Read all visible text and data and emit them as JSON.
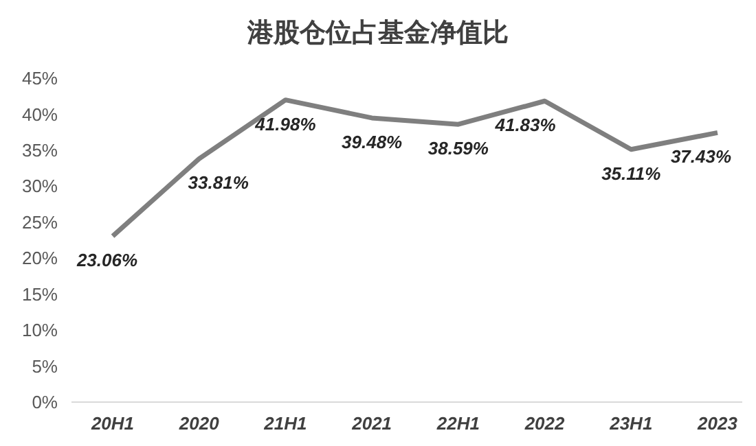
{
  "chart_data": {
    "type": "line",
    "title": "港股仓位占基金净值比",
    "categories": [
      "20H1",
      "2020",
      "21H1",
      "2021",
      "22H1",
      "2022",
      "23H1",
      "2023"
    ],
    "series": [
      {
        "color": "#7f7f7f",
        "values": [
          23.06,
          33.81,
          41.98,
          39.48,
          38.59,
          41.83,
          35.11,
          37.43
        ]
      }
    ],
    "value_labels": [
      "23.06%",
      "33.81%",
      "41.98%",
      "39.48%",
      "38.59%",
      "41.83%",
      "35.11%",
      "37.43%"
    ],
    "ylim": [
      0,
      45
    ],
    "yticks": [
      {
        "value": 0,
        "label": "0%"
      },
      {
        "value": 5,
        "label": "5%"
      },
      {
        "value": 10,
        "label": "10%"
      },
      {
        "value": 15,
        "label": "15%"
      },
      {
        "value": 20,
        "label": "20%"
      },
      {
        "value": 25,
        "label": "25%"
      },
      {
        "value": 30,
        "label": "30%"
      },
      {
        "value": 35,
        "label": "35%"
      },
      {
        "value": 40,
        "label": "40%"
      },
      {
        "value": 45,
        "label": "45%"
      }
    ],
    "marker": "none",
    "line_style": "solid"
  }
}
